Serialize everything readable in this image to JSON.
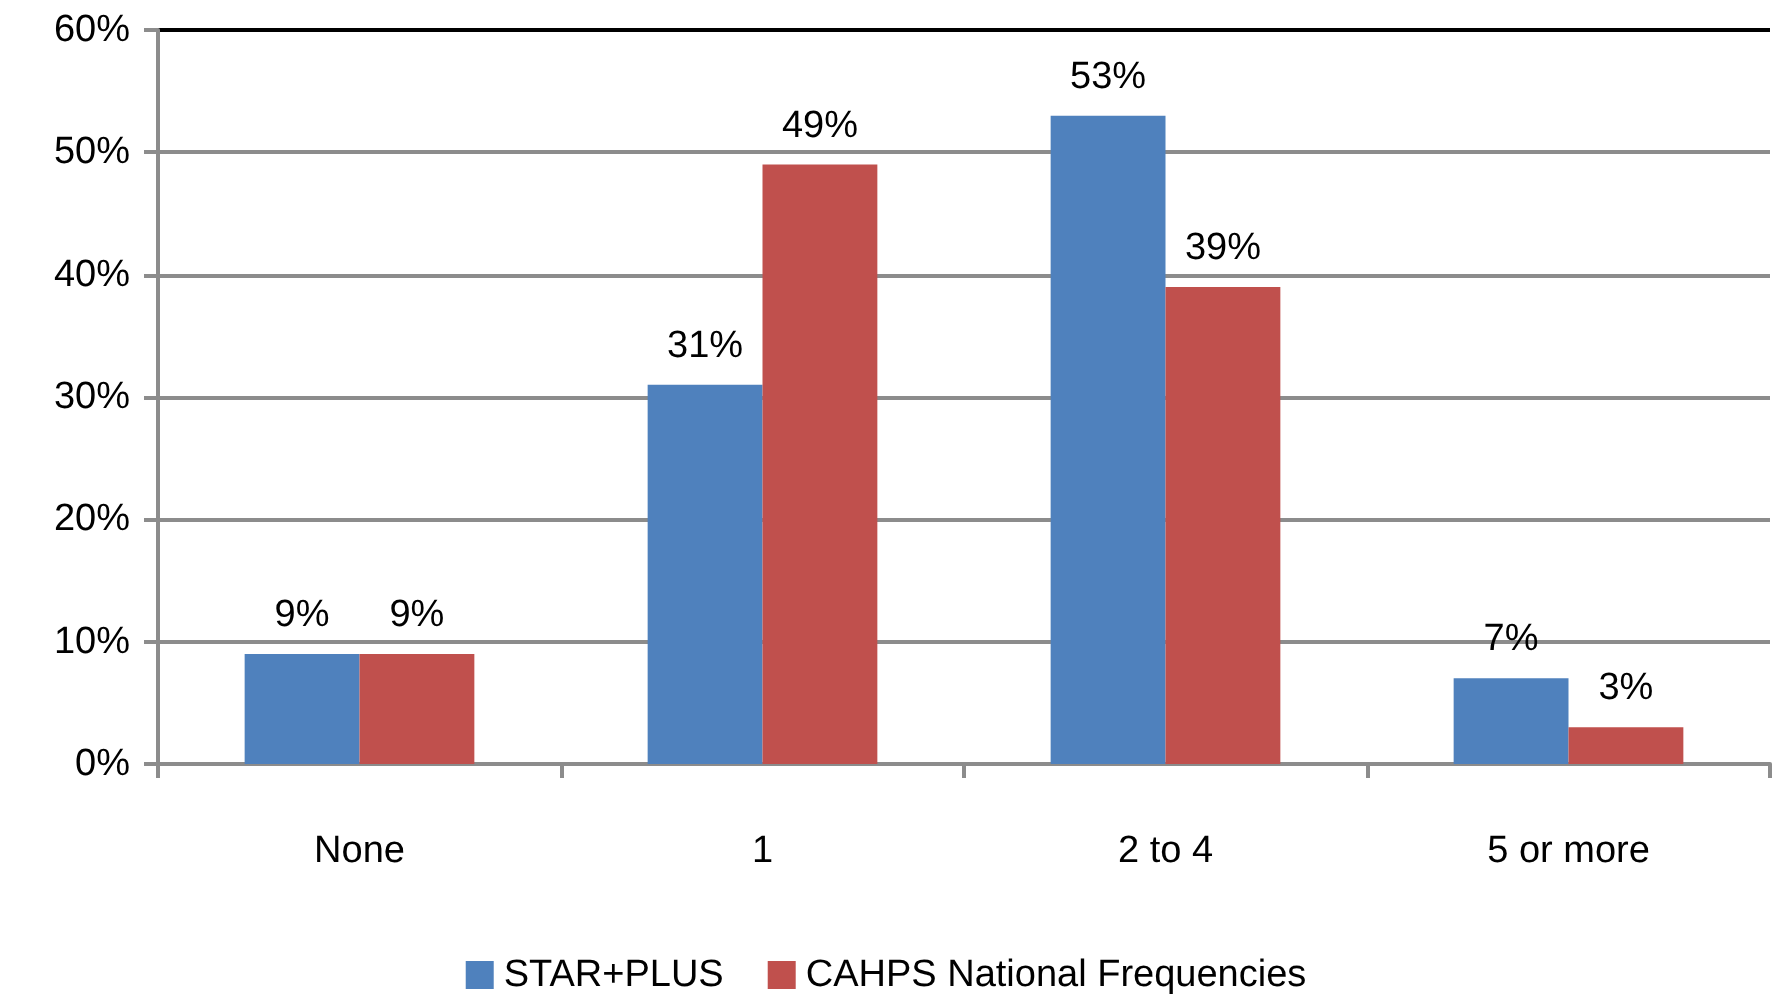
{
  "chart_data": {
    "type": "bar",
    "categories": [
      "None",
      "1",
      "2 to 4",
      "5 or more"
    ],
    "series": [
      {
        "name": "STAR+PLUS",
        "color": "#4f81bd",
        "values": [
          9,
          31,
          53,
          7
        ],
        "value_labels": [
          "9%",
          "31%",
          "53%",
          "7%"
        ]
      },
      {
        "name": "CAHPS National Frequencies",
        "color": "#c0504d",
        "values": [
          9,
          49,
          39,
          3
        ],
        "value_labels": [
          "9%",
          "49%",
          "39%",
          "3%"
        ]
      }
    ],
    "ylim": [
      0,
      60
    ],
    "yticks": [
      {
        "value": 0,
        "label": "0%"
      },
      {
        "value": 10,
        "label": "10%"
      },
      {
        "value": 20,
        "label": "20%"
      },
      {
        "value": 30,
        "label": "30%"
      },
      {
        "value": 40,
        "label": "40%"
      },
      {
        "value": 50,
        "label": "50%"
      },
      {
        "value": 60,
        "label": "60%"
      }
    ],
    "grid": "y",
    "legend": "bottom"
  }
}
